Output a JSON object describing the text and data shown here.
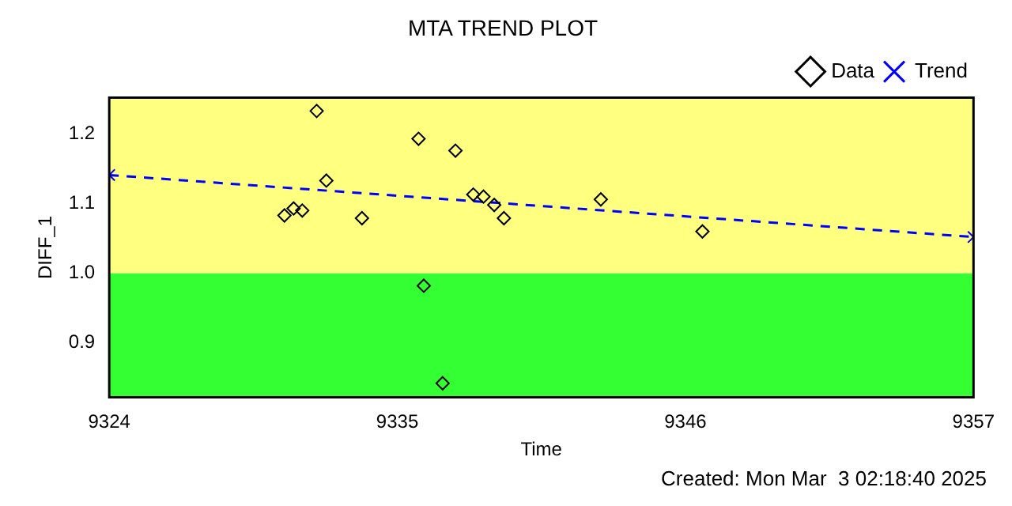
{
  "chart_data": {
    "type": "scatter",
    "title": "MTA TREND PLOT",
    "xlabel": "Time",
    "ylabel": "DIFF_1",
    "xlim": [
      9324,
      9357
    ],
    "xticks": [
      9324,
      9335,
      9346,
      9357
    ],
    "ylim": [
      0.822,
      1.252
    ],
    "yticks": [
      {
        "value": 0.9,
        "label": "0.9"
      },
      {
        "value": 1.0,
        "label": "1.0"
      },
      {
        "value": 1.1,
        "label": "1.1"
      },
      {
        "value": 1.2,
        "label": "1.2"
      }
    ],
    "grid": false,
    "legend": "top right",
    "bands": [
      {
        "axis": "y",
        "from": 0.822,
        "to": 1.0,
        "color": "#33ff33"
      },
      {
        "axis": "y",
        "from": 1.0,
        "to": 1.252,
        "color": "#ffff80"
      }
    ],
    "series": [
      {
        "name": "Data",
        "type": "scatter",
        "marker": "diamond",
        "color": "#000000",
        "x": [
          9330.69,
          9331.04,
          9331.37,
          9331.92,
          9332.29,
          9333.65,
          9335.81,
          9336.01,
          9336.73,
          9337.22,
          9337.9,
          9338.29,
          9338.7,
          9339.07,
          9342.77,
          9346.65
        ],
        "values": [
          1.083,
          1.093,
          1.09,
          1.233,
          1.133,
          1.079,
          1.193,
          0.982,
          0.842,
          1.176,
          1.113,
          1.11,
          1.098,
          1.079,
          1.106,
          1.06
        ]
      },
      {
        "name": "Trend",
        "type": "line",
        "marker": "cross",
        "line_style": "dashed",
        "color": "#0000ff",
        "x": [
          9324,
          9357
        ],
        "values": [
          1.141,
          1.052
        ]
      }
    ],
    "annotations": [
      "Created: Mon Mar  3 02:18:40 2025"
    ]
  }
}
